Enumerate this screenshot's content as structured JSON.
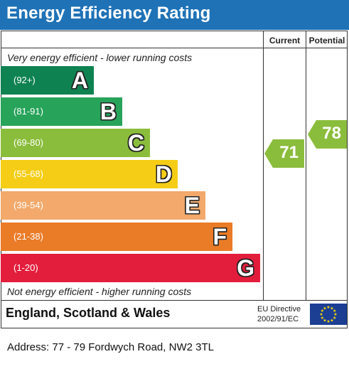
{
  "header": {
    "title": "Energy Efficiency Rating"
  },
  "columns": {
    "current": "Current",
    "potential": "Potential"
  },
  "notes": {
    "top": "Very energy efficient - lower running costs",
    "bottom": "Not energy efficient - higher running costs"
  },
  "bands": [
    {
      "range": "(92+)",
      "letter": "A",
      "color": "#0f8251"
    },
    {
      "range": "(81-91)",
      "letter": "B",
      "color": "#27a35a"
    },
    {
      "range": "(69-80)",
      "letter": "C",
      "color": "#8bbd3c"
    },
    {
      "range": "(55-68)",
      "letter": "D",
      "color": "#f5cd16"
    },
    {
      "range": "(39-54)",
      "letter": "E",
      "color": "#f2a96b"
    },
    {
      "range": "(21-38)",
      "letter": "F",
      "color": "#ea7b27"
    },
    {
      "range": "(1-20)",
      "letter": "G",
      "color": "#e31d3c"
    }
  ],
  "ratings": {
    "current": {
      "value": "71",
      "band": "C",
      "color": "#8bbd3c"
    },
    "potential": {
      "value": "78",
      "band": "C",
      "color": "#8bbd3c"
    }
  },
  "footer": {
    "region": "England, Scotland & Wales",
    "directive_line1": "EU Directive",
    "directive_line2": "2002/91/EC",
    "flag_icon": "eu-flag-icon"
  },
  "address": "Address: 77 - 79 Fordwych Road, NW2 3TL"
}
